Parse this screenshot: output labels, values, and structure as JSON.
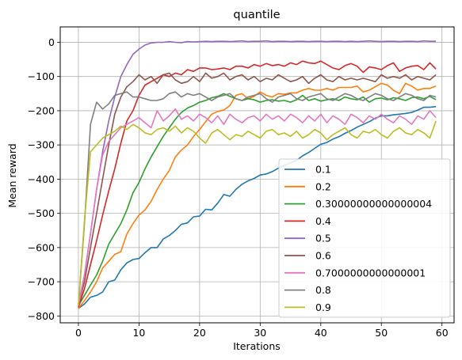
{
  "chart_data": {
    "type": "line",
    "title": "quantile",
    "xlabel": "Iterations",
    "ylabel": "Mean reward",
    "xlim": [
      -3,
      62
    ],
    "ylim": [
      -820,
      45
    ],
    "xticks": [
      0,
      10,
      20,
      30,
      40,
      50,
      60
    ],
    "yticks": [
      0,
      -100,
      -200,
      -300,
      -400,
      -500,
      -600,
      -700,
      -800
    ],
    "grid": true,
    "legend_position": "lower right",
    "series": [
      {
        "name": "0.1",
        "color": "#1f77b4",
        "values": [
          -778,
          -765,
          -745,
          -740,
          -730,
          -700,
          -695,
          -665,
          -645,
          -635,
          -632,
          -615,
          -600,
          -600,
          -575,
          -565,
          -550,
          -532,
          -528,
          -510,
          -508,
          -488,
          -490,
          -470,
          -445,
          -450,
          -430,
          -415,
          -405,
          -398,
          -388,
          -385,
          -378,
          -368,
          -360,
          -352,
          -345,
          -332,
          -322,
          -310,
          -298,
          -293,
          -283,
          -276,
          -266,
          -258,
          -248,
          -240,
          -232,
          -222,
          -215,
          -215,
          -212,
          -210,
          -208,
          -205,
          -198,
          -190,
          -190,
          -188
        ]
      },
      {
        "name": "0.2",
        "color": "#ff7f0e",
        "values": [
          -778,
          -755,
          -730,
          -700,
          -660,
          -640,
          -620,
          -612,
          -560,
          -530,
          -505,
          -490,
          -465,
          -430,
          -400,
          -375,
          -335,
          -315,
          -300,
          -275,
          -255,
          -232,
          -210,
          -202,
          -198,
          -185,
          -155,
          -150,
          -165,
          -158,
          -145,
          -155,
          -160,
          -150,
          -152,
          -148,
          -148,
          -140,
          -135,
          -140,
          -140,
          -135,
          -140,
          -132,
          -132,
          -132,
          -128,
          -145,
          -140,
          -130,
          -120,
          -125,
          -140,
          -150,
          -120,
          -128,
          -140,
          -135,
          -135,
          -128
        ]
      },
      {
        "name": "0.30000000000000004",
        "color": "#2ca02c",
        "values": [
          -770,
          -740,
          -710,
          -680,
          -640,
          -590,
          -560,
          -530,
          -490,
          -440,
          -410,
          -370,
          -335,
          -305,
          -275,
          -250,
          -225,
          -205,
          -192,
          -185,
          -175,
          -170,
          -162,
          -158,
          -150,
          -158,
          -165,
          -170,
          -165,
          -168,
          -175,
          -170,
          -168,
          -172,
          -170,
          -175,
          -168,
          -155,
          -170,
          -165,
          -172,
          -168,
          -165,
          -170,
          -160,
          -165,
          -168,
          -160,
          -175,
          -165,
          -163,
          -168,
          -162,
          -165,
          -170,
          -162,
          -160,
          -165,
          -158,
          -168
        ]
      },
      {
        "name": "0.4",
        "color": "#d62728",
        "values": [
          -775,
          -720,
          -650,
          -580,
          -505,
          -435,
          -370,
          -295,
          -230,
          -200,
          -155,
          -125,
          -115,
          -105,
          -95,
          -100,
          -90,
          -95,
          -80,
          -85,
          -75,
          -75,
          -80,
          -78,
          -75,
          -80,
          -70,
          -70,
          -75,
          -65,
          -70,
          -62,
          -68,
          -65,
          -70,
          -60,
          -65,
          -55,
          -60,
          -62,
          -55,
          -65,
          -75,
          -80,
          -68,
          -62,
          -70,
          -88,
          -72,
          -75,
          -80,
          -68,
          -60,
          -85,
          -75,
          -70,
          -68,
          -80,
          -60,
          -78
        ]
      },
      {
        "name": "0.5",
        "color": "#9467bd",
        "values": [
          -765,
          -680,
          -560,
          -430,
          -320,
          -230,
          -160,
          -100,
          -65,
          -35,
          -20,
          -8,
          -2,
          0,
          0,
          2,
          0,
          -1,
          2,
          1,
          2,
          3,
          2,
          3,
          3,
          2,
          3,
          4,
          2,
          3,
          3,
          4,
          2,
          3,
          3,
          2,
          3,
          3,
          2,
          3,
          3,
          2,
          3,
          3,
          2,
          3,
          2,
          3,
          4,
          3,
          2,
          3,
          3,
          2,
          3,
          3,
          2,
          4,
          3,
          3
        ]
      },
      {
        "name": "0.6",
        "color": "#8c564b",
        "values": [
          -768,
          -700,
          -600,
          -500,
          -400,
          -300,
          -210,
          -160,
          -130,
          -115,
          -95,
          -110,
          -100,
          -120,
          -95,
          -90,
          -110,
          -120,
          -115,
          -100,
          -115,
          -90,
          -105,
          -100,
          -90,
          -110,
          -100,
          -95,
          -110,
          -100,
          -115,
          -105,
          -110,
          -95,
          -105,
          -115,
          -110,
          -100,
          -120,
          -105,
          -95,
          -110,
          -115,
          -100,
          -110,
          -105,
          -110,
          -105,
          -110,
          -115,
          -95,
          -105,
          -100,
          -105,
          -95,
          -110,
          -100,
          -105,
          -110,
          -95
        ]
      },
      {
        "name": "0.7000000000000001",
        "color": "#e377c2",
        "values": [
          -770,
          -680,
          -560,
          -430,
          -330,
          -290,
          -270,
          -250,
          -240,
          -230,
          -220,
          -235,
          -250,
          -200,
          -230,
          -215,
          -195,
          -225,
          -215,
          -230,
          -210,
          -220,
          -235,
          -215,
          -240,
          -210,
          -225,
          -235,
          -220,
          -215,
          -230,
          -210,
          -225,
          -215,
          -230,
          -210,
          -220,
          -235,
          -215,
          -230,
          -210,
          -235,
          -215,
          -225,
          -240,
          -210,
          -220,
          -235,
          -215,
          -225,
          -210,
          -225,
          -235,
          -215,
          -225,
          -240,
          -215,
          -225,
          -200,
          -220
        ]
      },
      {
        "name": "0.8",
        "color": "#7f7f7f",
        "values": [
          -770,
          -530,
          -240,
          -175,
          -195,
          -180,
          -155,
          -150,
          -145,
          -160,
          -160,
          -165,
          -170,
          -170,
          -165,
          -150,
          -145,
          -160,
          -150,
          -155,
          -150,
          -160,
          -170,
          -160,
          -155,
          -150,
          -165,
          -170,
          -160,
          -155,
          -150,
          -165,
          -175,
          -160,
          -155,
          -150,
          -165,
          -170,
          -160,
          -155,
          -150,
          -165,
          -170,
          -160,
          -150,
          -155,
          -165,
          -170,
          -160,
          -150,
          -155,
          -165,
          -170,
          -160,
          -150,
          -155,
          -165,
          -170,
          -155,
          -160
        ]
      },
      {
        "name": "0.9",
        "color": "#bcbd22",
        "values": [
          -770,
          -520,
          -320,
          -300,
          -280,
          -270,
          -260,
          -245,
          -255,
          -240,
          -250,
          -265,
          -270,
          -255,
          -250,
          -260,
          -245,
          -265,
          -250,
          -260,
          -280,
          -295,
          -265,
          -255,
          -270,
          -285,
          -270,
          -275,
          -260,
          -270,
          -280,
          -260,
          -255,
          -270,
          -265,
          -275,
          -260,
          -280,
          -270,
          -255,
          -265,
          -285,
          -270,
          -260,
          -250,
          -270,
          -280,
          -260,
          -265,
          -255,
          -270,
          -280,
          -260,
          -250,
          -265,
          -270,
          -255,
          -265,
          -280,
          -230
        ]
      }
    ]
  }
}
